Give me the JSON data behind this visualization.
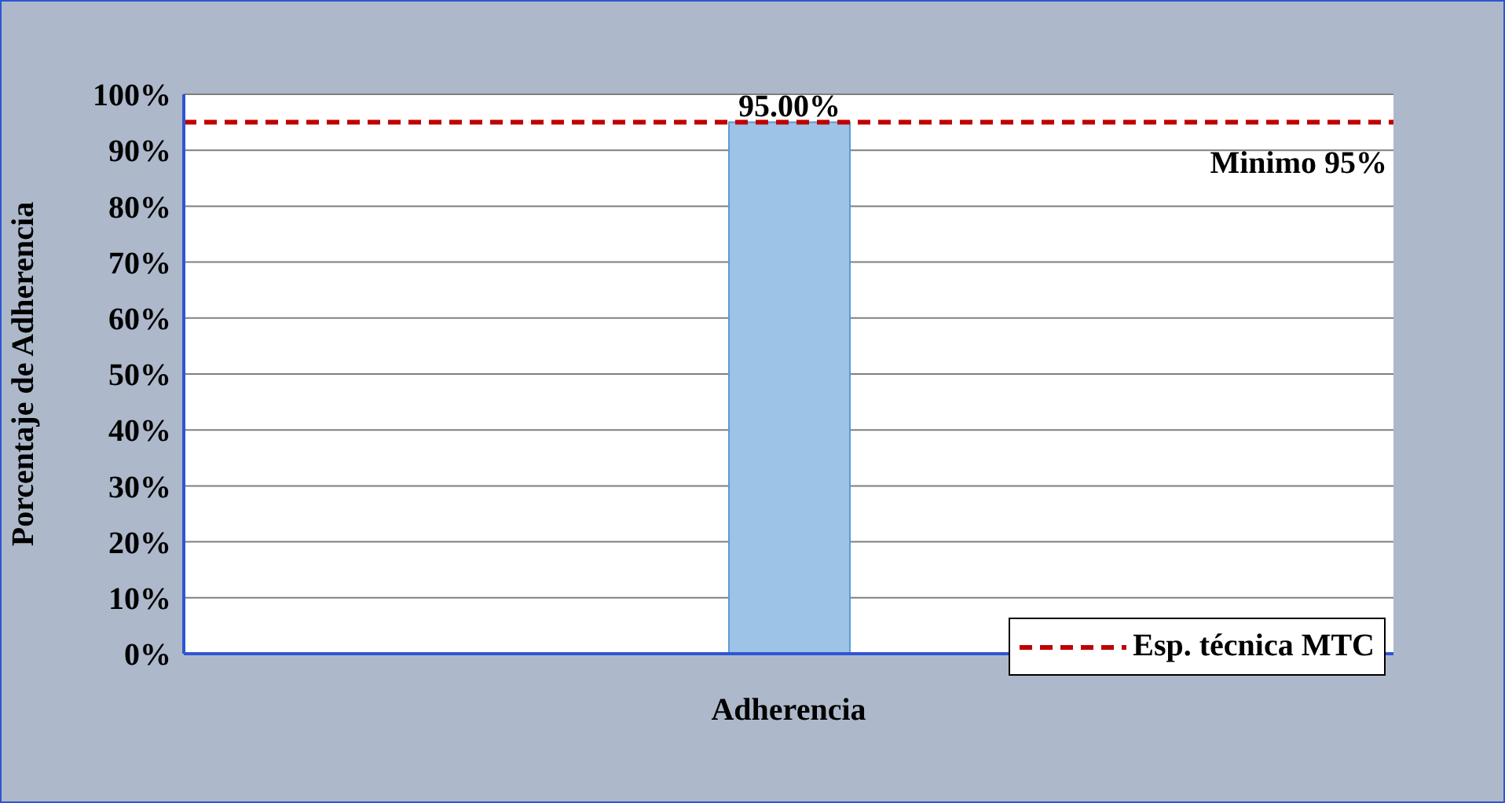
{
  "chart_data": {
    "type": "bar",
    "ylabel": "Porcentaje de Adherencia",
    "categories": [
      "Adherencia"
    ],
    "values": [
      95
    ],
    "color": "#9dc3e6",
    "value_labels": [
      "95.00%"
    ],
    "ylim": [
      0,
      100
    ],
    "yticks": [
      {
        "value": 0,
        "label": "0%"
      },
      {
        "value": 10,
        "label": "10%"
      },
      {
        "value": 20,
        "label": "20%"
      },
      {
        "value": 30,
        "label": "30%"
      },
      {
        "value": 40,
        "label": "40%"
      },
      {
        "value": 50,
        "label": "50%"
      },
      {
        "value": 60,
        "label": "60%"
      },
      {
        "value": 70,
        "label": "70%"
      },
      {
        "value": 80,
        "label": "80%"
      },
      {
        "value": 90,
        "label": "90%"
      },
      {
        "value": 100,
        "label": "100%"
      }
    ],
    "ref_lines": [
      {
        "axis": "y",
        "value": 95,
        "label": "Esp. técnica MTC",
        "color": "#c00000",
        "line_style": "dashed"
      }
    ],
    "annotations": [
      {
        "text": "Minimo 95%",
        "y": 95
      }
    ],
    "grid": "y",
    "legend": "bottom right"
  }
}
